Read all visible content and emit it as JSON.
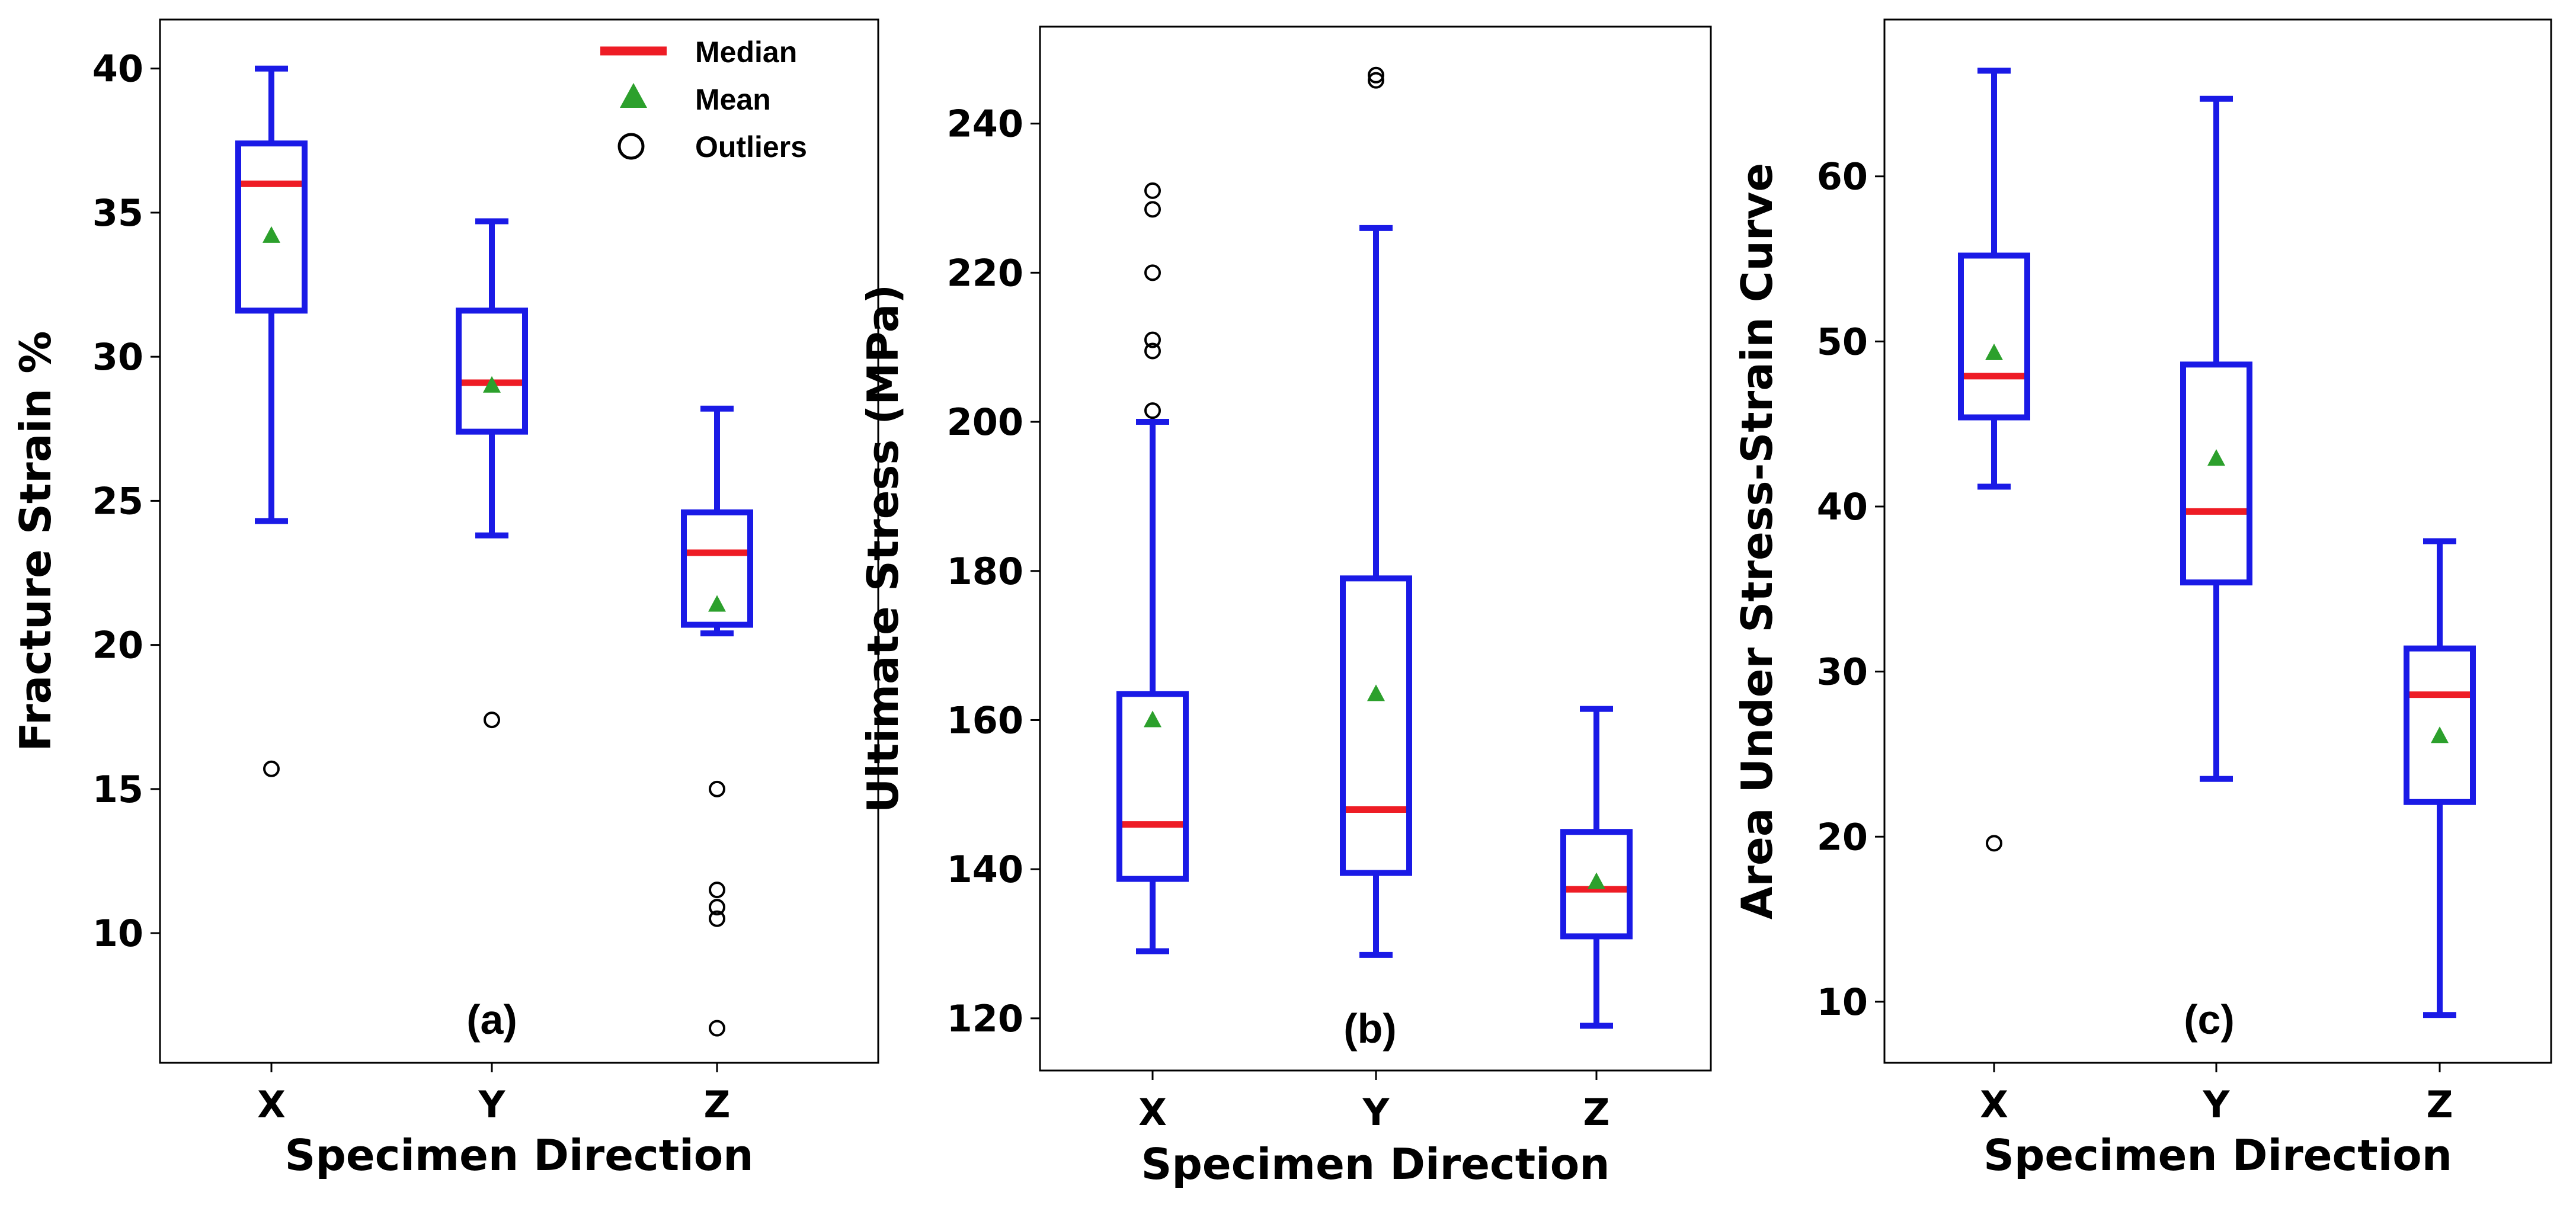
{
  "colors": {
    "box": "#1a1ae6",
    "median": "#ee1c25",
    "mean": "#2ca02c",
    "outlier_edge": "#000000"
  },
  "legend": {
    "median_label": "Median",
    "mean_label": "Mean",
    "outliers_label": "Outliers",
    "placement": "top-right of panel (a)"
  },
  "chart_data": [
    {
      "type": "box",
      "panel_label": "(a)",
      "xlabel": "Specimen Direction",
      "ylabel": "Fracture Strain %",
      "categories": [
        "X",
        "Y",
        "Z"
      ],
      "ylim": [
        5.5,
        41.7
      ],
      "yticks": [
        10,
        15,
        20,
        25,
        30,
        35,
        40
      ],
      "grid": false,
      "boxes": [
        {
          "category": "X",
          "whisker_low": 24.3,
          "q1": 31.6,
          "median": 36.0,
          "q3": 37.4,
          "whisker_high": 40.0,
          "mean": 34.2,
          "outliers": [
            15.7
          ]
        },
        {
          "category": "Y",
          "whisker_low": 23.8,
          "q1": 27.4,
          "median": 29.1,
          "q3": 31.6,
          "whisker_high": 34.7,
          "mean": 29.0,
          "outliers": [
            17.4
          ]
        },
        {
          "category": "Z",
          "whisker_low": 20.4,
          "q1": 20.7,
          "median": 23.2,
          "q3": 24.6,
          "whisker_high": 28.2,
          "mean": 21.4,
          "outliers": [
            15.0,
            11.5,
            10.9,
            10.5,
            6.7
          ]
        }
      ]
    },
    {
      "type": "box",
      "panel_label": "(b)",
      "xlabel": "Specimen Direction",
      "ylabel": "Ultimate Stress (MPa)",
      "categories": [
        "X",
        "Y",
        "Z"
      ],
      "ylim": [
        113,
        253
      ],
      "yticks": [
        120,
        140,
        160,
        180,
        200,
        220,
        240
      ],
      "grid": false,
      "boxes": [
        {
          "category": "X",
          "whisker_low": 129,
          "q1": 138.7,
          "median": 146,
          "q3": 163.5,
          "whisker_high": 200,
          "mean": 160,
          "outliers": [
            201.5,
            209.5,
            211,
            220,
            228.5,
            231
          ]
        },
        {
          "category": "Y",
          "whisker_low": 128.5,
          "q1": 139.5,
          "median": 148,
          "q3": 179,
          "whisker_high": 226,
          "mean": 163.5,
          "outliers": [
            245.8,
            246.5
          ]
        },
        {
          "category": "Z",
          "whisker_low": 119,
          "q1": 131,
          "median": 137.3,
          "q3": 145,
          "whisker_high": 161.5,
          "mean": 138.3,
          "outliers": []
        }
      ]
    },
    {
      "type": "box",
      "panel_label": "(c)",
      "xlabel": "Specimen Direction",
      "ylabel": "Area Under Stress-Strain Curve",
      "categories": [
        "X",
        "Y",
        "Z"
      ],
      "ylim": [
        6.3,
        69.5
      ],
      "yticks": [
        10,
        20,
        30,
        40,
        50,
        60
      ],
      "grid": false,
      "boxes": [
        {
          "category": "X",
          "whisker_low": 41.2,
          "q1": 45.4,
          "median": 47.9,
          "q3": 55.2,
          "whisker_high": 66.4,
          "mean": 49.3,
          "outliers": [
            19.6
          ]
        },
        {
          "category": "Y",
          "whisker_low": 23.5,
          "q1": 35.4,
          "median": 39.7,
          "q3": 48.6,
          "whisker_high": 64.7,
          "mean": 42.9,
          "outliers": []
        },
        {
          "category": "Z",
          "whisker_low": 9.2,
          "q1": 22.1,
          "median": 28.6,
          "q3": 31.4,
          "whisker_high": 37.9,
          "mean": 26.1,
          "outliers": []
        }
      ]
    }
  ]
}
